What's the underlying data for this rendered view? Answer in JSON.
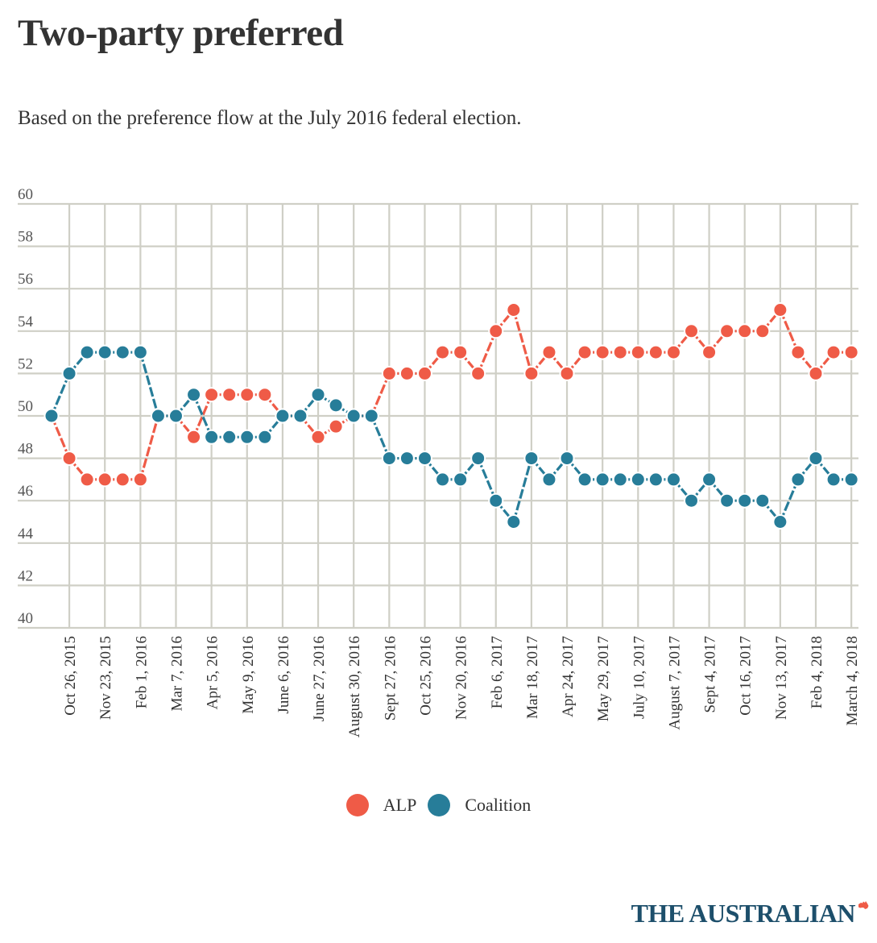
{
  "header": {
    "title": "Two-party preferred",
    "subtitle": "Based on the preference flow at the July 2016 federal election."
  },
  "legend": [
    {
      "label": "ALP",
      "color": "#ef5b47"
    },
    {
      "label": "Coalition",
      "color": "#277d99"
    }
  ],
  "logo": {
    "text": "THE AUSTRALIAN",
    "mark_color": "#ef5b47"
  },
  "colors": {
    "grid": "#cfcfc6",
    "axis_text": "#555555"
  },
  "chart_data": {
    "type": "line",
    "title": "Two-party preferred",
    "subtitle": "Based on the preference flow at the July 2016 federal election.",
    "xlabel": "",
    "ylabel": "",
    "ylim": [
      40,
      60
    ],
    "yticks": [
      40,
      42,
      44,
      46,
      48,
      50,
      52,
      54,
      56,
      58,
      60
    ],
    "grid": true,
    "legend_position": "bottom-center",
    "x_tick_labels": [
      "Oct 26, 2015",
      "Nov 23, 2015",
      "Feb 1, 2016",
      "Mar 7, 2016",
      "Apr 5, 2016",
      "May 9, 2016",
      "June 6, 2016",
      "June 27, 2016",
      "August 30, 2016",
      "Sept 27, 2016",
      "Oct 25, 2016",
      "Nov 20, 2016",
      "Feb 6, 2017",
      "Mar 18, 2017",
      "Apr 24, 2017",
      "May 29, 2017",
      "July 10, 2017",
      "August 7, 2017",
      "Sept 4, 2017",
      "Oct 16, 2017",
      "Nov 13, 2017",
      "Feb 4, 2018",
      "March 4, 2018"
    ],
    "x_tick_every": 2,
    "x_tick_offset": 1,
    "point_count": 46,
    "series": [
      {
        "name": "ALP",
        "color": "#ef5b47",
        "values": [
          50,
          48,
          47,
          47,
          47,
          47,
          50,
          50,
          49,
          51,
          51,
          51,
          51,
          50,
          50,
          49,
          49.5,
          50,
          50,
          52,
          52,
          52,
          53,
          53,
          52,
          54,
          55,
          52,
          53,
          52,
          53,
          53,
          53,
          53,
          53,
          53,
          54,
          53,
          54,
          54,
          54,
          55,
          53,
          52,
          53,
          53
        ]
      },
      {
        "name": "Coalition",
        "color": "#277d99",
        "values": [
          50,
          52,
          53,
          53,
          53,
          53,
          50,
          50,
          51,
          49,
          49,
          49,
          49,
          50,
          50,
          51,
          50.5,
          50,
          50,
          48,
          48,
          48,
          47,
          47,
          48,
          46,
          45,
          48,
          47,
          48,
          47,
          47,
          47,
          47,
          47,
          47,
          46,
          47,
          46,
          46,
          46,
          45,
          47,
          48,
          47,
          47
        ]
      }
    ]
  }
}
